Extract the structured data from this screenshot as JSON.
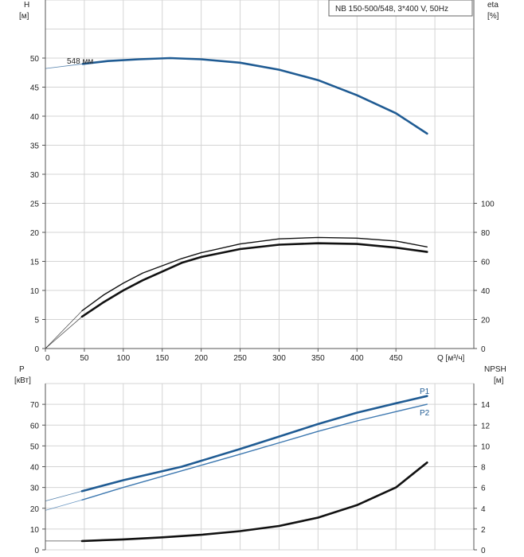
{
  "title_box": "NB 150-500/548, 3*400 V, 50Hz",
  "colors": {
    "blue": "#1f5b93",
    "blue_light": "#3d78b0",
    "black": "#111111",
    "grid": "#d4d4d4"
  },
  "chart_data": [
    {
      "type": "line",
      "name": "head-efficiency",
      "left_axis": {
        "label_line1": "H",
        "label_line2": "[м]",
        "ticks": [
          0,
          5,
          10,
          15,
          20,
          25,
          30,
          35,
          40,
          45,
          50
        ],
        "ylim": [
          0,
          60
        ]
      },
      "right_axis": {
        "label_line1": "eta",
        "label_line2": "[%]",
        "ticks": [
          0,
          20,
          40,
          60,
          80,
          100
        ],
        "ylim": [
          0,
          240
        ]
      },
      "x_axis": {
        "label": "Q [м³/ч]",
        "ticks": [
          0,
          50,
          100,
          150,
          200,
          250,
          300,
          350,
          400,
          450
        ],
        "xlim": [
          0,
          550
        ]
      },
      "curve_label": "548 мм",
      "series": [
        {
          "axis": "left",
          "color": "blue",
          "width": 2.6,
          "points": [
            [
              48,
              49.0
            ],
            [
              80,
              49.5
            ],
            [
              120,
              49.8
            ],
            [
              160,
              50.0
            ],
            [
              200,
              49.8
            ],
            [
              250,
              49.2
            ],
            [
              300,
              48.0
            ],
            [
              350,
              46.2
            ],
            [
              400,
              43.6
            ],
            [
              450,
              40.5
            ],
            [
              490,
              37.0
            ]
          ],
          "ext": [
            [
              0,
              48.2
            ],
            [
              48,
              49.0
            ]
          ]
        },
        {
          "axis": "right",
          "color": "black",
          "width": 1.4,
          "points": [
            [
              47,
              26
            ],
            [
              75,
              37
            ],
            [
              100,
              45
            ],
            [
              125,
              52
            ],
            [
              150,
              57
            ],
            [
              175,
              62
            ],
            [
              200,
              66
            ],
            [
              250,
              72
            ],
            [
              300,
              75.5
            ],
            [
              350,
              76.5
            ],
            [
              400,
              76
            ],
            [
              450,
              74
            ],
            [
              490,
              70
            ]
          ],
          "ext": [
            [
              0,
              0
            ],
            [
              47,
              26
            ]
          ]
        },
        {
          "axis": "right",
          "color": "black",
          "width": 2.6,
          "points": [
            [
              47,
              22
            ],
            [
              75,
              32
            ],
            [
              100,
              40
            ],
            [
              125,
              47
            ],
            [
              150,
              53
            ],
            [
              175,
              59
            ],
            [
              200,
              63
            ],
            [
              250,
              68.5
            ],
            [
              300,
              71.5
            ],
            [
              350,
              72.5
            ],
            [
              400,
              72
            ],
            [
              450,
              69.5
            ],
            [
              490,
              66.5
            ]
          ],
          "ext": [
            [
              0,
              0
            ],
            [
              47,
              22
            ]
          ]
        }
      ]
    },
    {
      "type": "line",
      "name": "power-npsh",
      "left_axis": {
        "label_line1": "P",
        "label_line2": "[кВт]",
        "ticks": [
          0,
          10,
          20,
          30,
          40,
          50,
          60,
          70
        ],
        "ylim": [
          0,
          80
        ]
      },
      "right_axis": {
        "label_line1": "NPSH",
        "label_line2": "[м]",
        "ticks": [
          0,
          2,
          4,
          6,
          8,
          10,
          12,
          14
        ],
        "ylim": [
          0,
          16
        ]
      },
      "x_axis": {
        "xlim": [
          0,
          550
        ]
      },
      "series": [
        {
          "name": "P1",
          "axis": "left",
          "color": "blue",
          "width": 2.6,
          "points": [
            [
              47,
              28.2
            ],
            [
              100,
              33.5
            ],
            [
              175,
              40.0
            ],
            [
              250,
              48.5
            ],
            [
              300,
              54.5
            ],
            [
              350,
              60.5
            ],
            [
              400,
              66.0
            ],
            [
              450,
              70.5
            ],
            [
              490,
              74.0
            ]
          ],
          "ext": [
            [
              0,
              23.5
            ],
            [
              47,
              28.2
            ]
          ]
        },
        {
          "name": "P2",
          "axis": "left",
          "color": "blue_light",
          "width": 1.4,
          "points": [
            [
              47,
              24.0
            ],
            [
              100,
              30.0
            ],
            [
              175,
              38.0
            ],
            [
              250,
              46.0
            ],
            [
              300,
              51.5
            ],
            [
              350,
              57.0
            ],
            [
              400,
              62.0
            ],
            [
              450,
              66.5
            ],
            [
              490,
              70.0
            ]
          ],
          "ext": [
            [
              0,
              19.0
            ],
            [
              47,
              24.0
            ]
          ]
        },
        {
          "axis": "right",
          "color": "black",
          "width": 2.6,
          "points": [
            [
              47,
              0.85
            ],
            [
              100,
              1.0
            ],
            [
              150,
              1.2
            ],
            [
              200,
              1.45
            ],
            [
              250,
              1.8
            ],
            [
              300,
              2.3
            ],
            [
              350,
              3.1
            ],
            [
              400,
              4.3
            ],
            [
              450,
              6.0
            ],
            [
              490,
              8.4
            ]
          ],
          "ext": [
            [
              0,
              0.85
            ],
            [
              47,
              0.85
            ]
          ]
        }
      ]
    }
  ]
}
